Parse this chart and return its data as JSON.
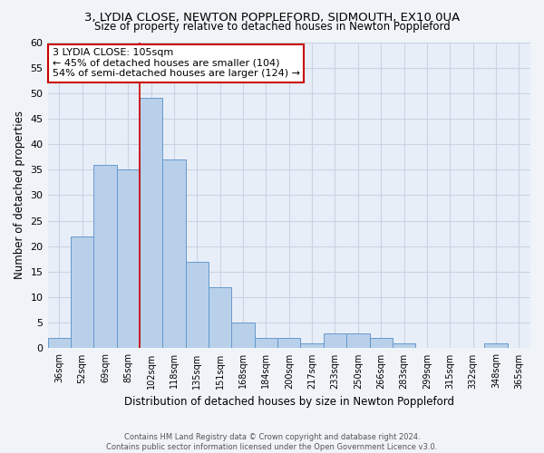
{
  "title_line1": "3, LYDIA CLOSE, NEWTON POPPLEFORD, SIDMOUTH, EX10 0UA",
  "title_line2": "Size of property relative to detached houses in Newton Poppleford",
  "xlabel": "Distribution of detached houses by size in Newton Poppleford",
  "ylabel": "Number of detached properties",
  "footer_line1": "Contains HM Land Registry data © Crown copyright and database right 2024.",
  "footer_line2": "Contains public sector information licensed under the Open Government Licence v3.0.",
  "bin_labels": [
    "36sqm",
    "52sqm",
    "69sqm",
    "85sqm",
    "102sqm",
    "118sqm",
    "135sqm",
    "151sqm",
    "168sqm",
    "184sqm",
    "200sqm",
    "217sqm",
    "233sqm",
    "250sqm",
    "266sqm",
    "283sqm",
    "299sqm",
    "315sqm",
    "332sqm",
    "348sqm",
    "365sqm"
  ],
  "bar_heights": [
    2,
    22,
    36,
    35,
    49,
    37,
    17,
    12,
    5,
    2,
    2,
    1,
    3,
    3,
    2,
    1,
    0,
    0,
    0,
    1,
    0
  ],
  "bar_color": "#b8d0ea",
  "bar_edge_color": "#6699cc",
  "background_color": "#e8eef8",
  "grid_color": "#d0d8e8",
  "property_label": "3 LYDIA CLOSE: 105sqm",
  "annotation_line1": "← 45% of detached houses are smaller (104)",
  "annotation_line2": "54% of semi-detached houses are larger (124) →",
  "vline_color": "#cc0000",
  "vline_bin_index": 3.5,
  "annotation_box_color": "#ffffff",
  "annotation_box_edge": "#cc0000",
  "ylim": [
    0,
    60
  ],
  "yticks": [
    0,
    5,
    10,
    15,
    20,
    25,
    30,
    35,
    40,
    45,
    50,
    55,
    60
  ]
}
